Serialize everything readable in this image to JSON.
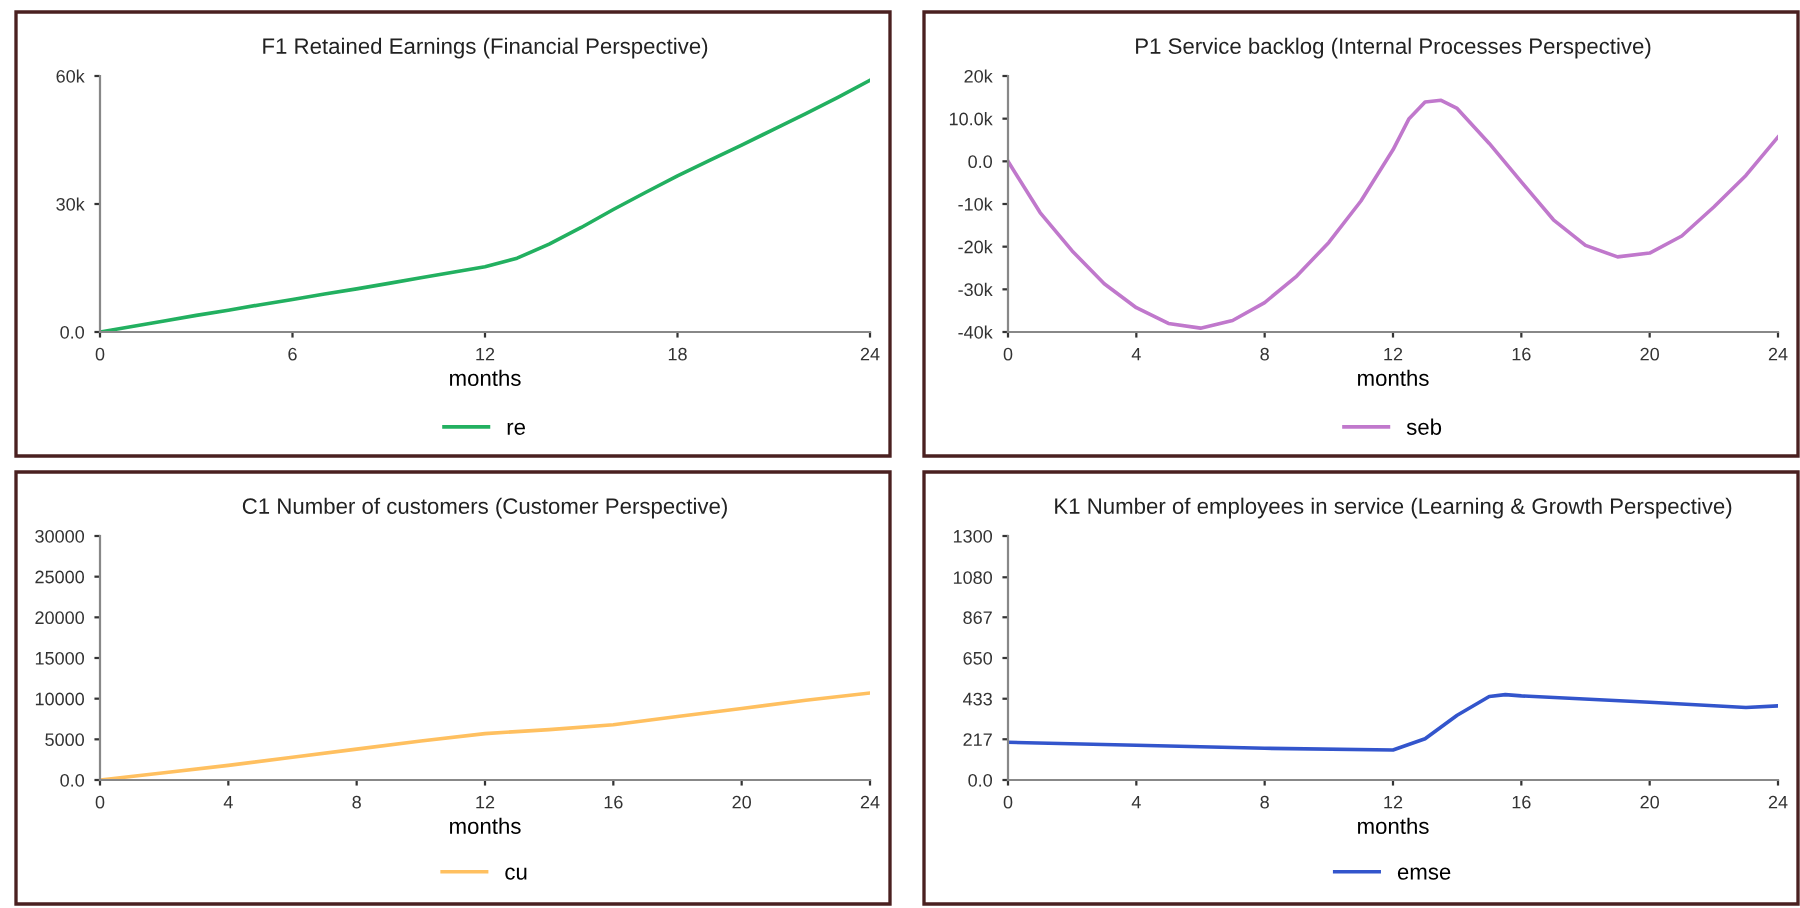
{
  "chart_data": [
    {
      "type": "line",
      "title": "F1 Retained Earnings (Financial Perspective)",
      "xlabel": "months",
      "legend": "bottom",
      "grid": false,
      "marker": "none",
      "line_style": "solid",
      "xlim": [
        0,
        24
      ],
      "xticks": [
        0,
        6,
        12,
        18,
        24
      ],
      "ylim": [
        0,
        60000
      ],
      "yticks": [
        {
          "value": 0,
          "label": "0.0"
        },
        {
          "value": 30000,
          "label": "30k"
        },
        {
          "value": 60000,
          "label": "60k"
        }
      ],
      "x": [
        0,
        1,
        2,
        3,
        4,
        5,
        6,
        7,
        8,
        9,
        10,
        11,
        12,
        13,
        14,
        15,
        16,
        17,
        18,
        19,
        20,
        21,
        22,
        23,
        24
      ],
      "series": [
        {
          "name": "re",
          "color": "#22b060",
          "values": [
            0,
            1300,
            2600,
            3900,
            5100,
            6400,
            7600,
            8900,
            10100,
            11400,
            12700,
            14000,
            15300,
            17300,
            20600,
            24500,
            28700,
            32700,
            36600,
            40200,
            43800,
            47500,
            51200,
            55000,
            59000
          ]
        }
      ]
    },
    {
      "type": "line",
      "title": "P1 Service backlog (Internal Processes Perspective)",
      "xlabel": "months",
      "legend": "bottom",
      "grid": false,
      "marker": "none",
      "line_style": "solid",
      "xlim": [
        0,
        24
      ],
      "xticks": [
        0,
        4,
        8,
        12,
        16,
        20,
        24
      ],
      "ylim": [
        -40000,
        20000
      ],
      "yticks": [
        {
          "value": -40000,
          "label": "-40k"
        },
        {
          "value": -30000,
          "label": "-30k"
        },
        {
          "value": -20000,
          "label": "-20k"
        },
        {
          "value": -10000,
          "label": "-10k"
        },
        {
          "value": 0,
          "label": "0.0"
        },
        {
          "value": 10000,
          "label": "10.0k"
        },
        {
          "value": 20000,
          "label": "20k"
        }
      ],
      "x": [
        0,
        1,
        2,
        3,
        4,
        5,
        6,
        7,
        8,
        9,
        10,
        11,
        12,
        12.5,
        13,
        13.5,
        14,
        15,
        16,
        17,
        18,
        19,
        20,
        21,
        22,
        23,
        24
      ],
      "series": [
        {
          "name": "seb",
          "color": "#c078cc",
          "values": [
            0,
            -12000,
            -21000,
            -28700,
            -34300,
            -38000,
            -39100,
            -37300,
            -33100,
            -26900,
            -19000,
            -9300,
            2700,
            10000,
            13900,
            14300,
            12400,
            4200,
            -4800,
            -13700,
            -19700,
            -22400,
            -21500,
            -17500,
            -10700,
            -3300,
            5700
          ]
        }
      ]
    },
    {
      "type": "line",
      "title": "C1 Number of customers (Customer Perspective)",
      "xlabel": "months",
      "legend": "bottom",
      "grid": false,
      "marker": "none",
      "line_style": "solid",
      "xlim": [
        0,
        24
      ],
      "xticks": [
        0,
        4,
        8,
        12,
        16,
        20,
        24
      ],
      "ylim": [
        0,
        30000
      ],
      "yticks": [
        {
          "value": 0,
          "label": "0.0"
        },
        5000,
        10000,
        15000,
        20000,
        25000,
        30000
      ],
      "x": [
        0,
        2,
        4,
        6,
        8,
        10,
        12,
        14,
        16,
        18,
        20,
        22,
        24
      ],
      "series": [
        {
          "name": "cu",
          "color": "#ffc060",
          "values": [
            0,
            900,
            1800,
            2800,
            3800,
            4800,
            5700,
            6200,
            6800,
            7800,
            8800,
            9800,
            10700
          ]
        }
      ]
    },
    {
      "type": "line",
      "title": "K1 Number of employees in service (Learning & Growth Perspective)",
      "xlabel": "months",
      "legend": "bottom",
      "grid": false,
      "marker": "none",
      "line_style": "solid",
      "xlim": [
        0,
        24
      ],
      "xticks": [
        0,
        4,
        8,
        12,
        16,
        20,
        24
      ],
      "ylim": [
        0,
        1300
      ],
      "yticks": [
        {
          "value": 0,
          "label": "0.0"
        },
        217,
        433,
        650,
        867,
        1080,
        1300
      ],
      "x": [
        0,
        4,
        8,
        12,
        13,
        14,
        15,
        15.5,
        16,
        20,
        23,
        24
      ],
      "series": [
        {
          "name": "emse",
          "color": "#3355cc",
          "values": [
            201,
            185,
            169,
            160,
            220,
            345,
            445,
            455,
            448,
            414,
            386,
            395
          ]
        }
      ]
    }
  ]
}
